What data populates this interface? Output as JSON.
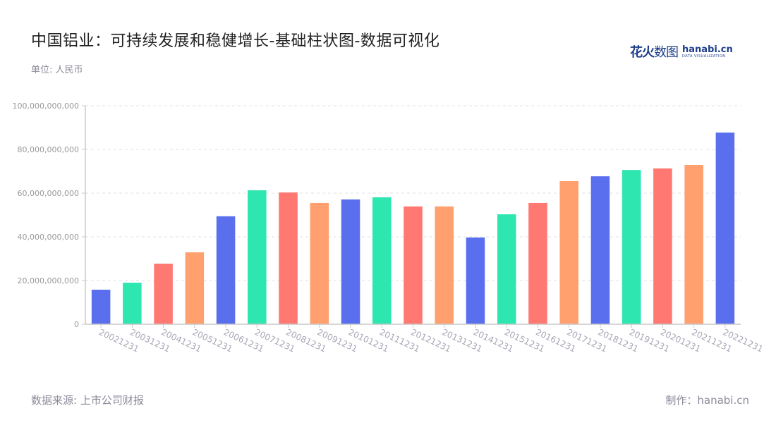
{
  "header": {
    "title": "中国铝业：可持续发展和稳健增长-基础柱状图-数据可视化",
    "unit_label": "单位: 人民币"
  },
  "logo": {
    "cn_bold": "花火",
    "cn_thin": "数图",
    "en_main": "hanabi.cn",
    "en_sub": "DATA VISUALIZATION"
  },
  "footer": {
    "source": "数据来源: 上市公司财报",
    "credit": "制作：hanabi.cn"
  },
  "colors": {
    "palette": [
      "#5a6fee",
      "#2ee6b0",
      "#ff7872",
      "#ffa06e"
    ],
    "axis": "#c8c8c8",
    "grid": "#e0e0e0",
    "tick_label": "#999999",
    "x_label": "#a8a8b8"
  },
  "chart_data": {
    "type": "bar",
    "title": "中国铝业：可持续发展和稳健增长-基础柱状图-数据可视化",
    "subtitle": "单位: 人民币",
    "xlabel": "",
    "ylabel": "",
    "ylim": [
      0,
      100000000000
    ],
    "yticks": [
      0,
      20000000000,
      40000000000,
      60000000000,
      80000000000,
      100000000000
    ],
    "ytick_labels": [
      "0",
      "20,000,000,000",
      "40,000,000,000",
      "60,000,000,000",
      "80,000,000,000",
      "100,000,000,000"
    ],
    "grid": true,
    "legend": "none",
    "categories": [
      "20021231",
      "20031231",
      "20041231",
      "20051231",
      "20061231",
      "20071231",
      "20081231",
      "20091231",
      "20101231",
      "20111231",
      "20121231",
      "20131231",
      "20141231",
      "20151231",
      "20161231",
      "20171231",
      "20181231",
      "20191231",
      "20201231",
      "20211231",
      "20221231"
    ],
    "values": [
      15800000000,
      19000000000,
      27700000000,
      32900000000,
      49400000000,
      61300000000,
      60300000000,
      55500000000,
      57100000000,
      58100000000,
      53900000000,
      53900000000,
      39700000000,
      50300000000,
      55500000000,
      65500000000,
      67700000000,
      70600000000,
      71300000000,
      72900000000,
      87700000000
    ]
  }
}
